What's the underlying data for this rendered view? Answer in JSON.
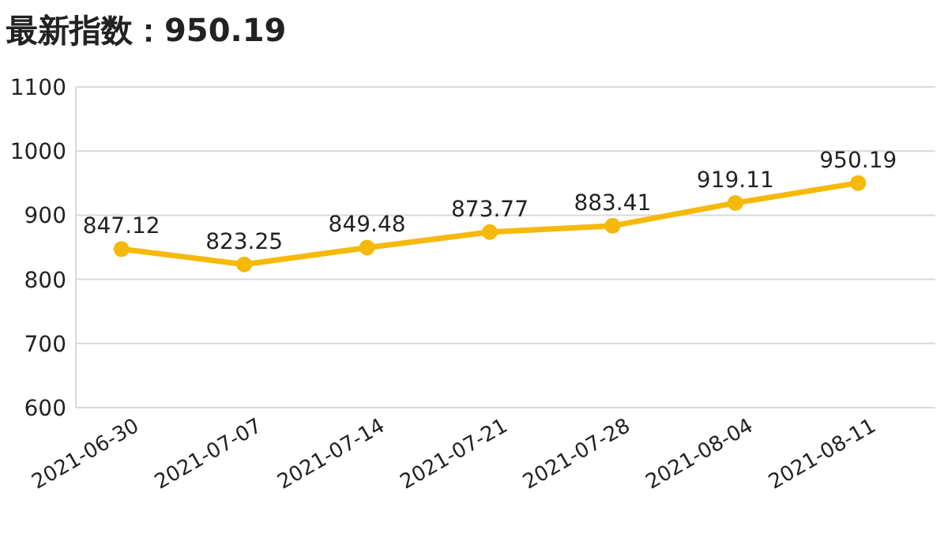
{
  "chart_data": {
    "type": "line",
    "title": "最新指数：950.19",
    "categories": [
      "2021-06-30",
      "2021-07-07",
      "2021-07-14",
      "2021-07-21",
      "2021-07-28",
      "2021-08-04",
      "2021-08-11"
    ],
    "series": [
      {
        "color": "#f5b90a",
        "values": [
          847.12,
          823.25,
          849.48,
          873.77,
          883.41,
          919.11,
          950.19
        ]
      }
    ],
    "ylim": [
      600,
      1100
    ],
    "yticks": [
      600,
      700,
      800,
      900,
      1000,
      1100
    ],
    "grid": "y",
    "marker": "circle",
    "data_labels": true
  }
}
